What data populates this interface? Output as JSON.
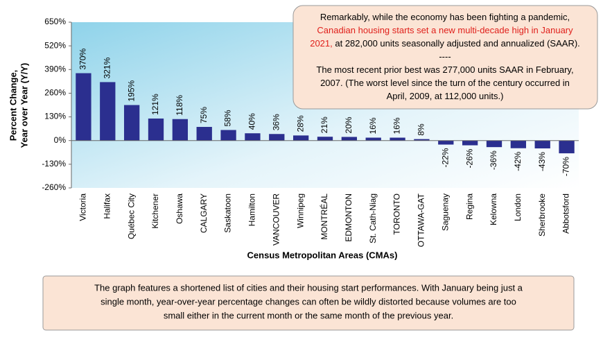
{
  "chart_data": {
    "type": "bar",
    "y_axis_title": [
      "Percent Change,",
      "Year over Year (Y/Y)"
    ],
    "x_axis_title": "Census Metropolitan Areas (CMAs)",
    "categories": [
      "Victoria",
      "Halifax",
      "Québec City",
      "Kitchener",
      "Oshawa",
      "CALGARY",
      "Saskatoon",
      "Hamilton",
      "VANCOUVER",
      "Winnipeg",
      "MONTRÉAL",
      "EDMONTON",
      "St. Cath-Niag",
      "TORONTO",
      "OTTAWA-GAT",
      "Saguenay",
      "Regina",
      "Kelowna",
      "London",
      "Sherbrooke",
      "Abbotsford"
    ],
    "values": [
      370,
      321,
      195,
      121,
      118,
      75,
      58,
      40,
      36,
      28,
      21,
      20,
      16,
      16,
      8,
      -22,
      -26,
      -36,
      -42,
      -43,
      -70
    ],
    "value_labels": [
      "370%",
      "321%",
      "195%",
      "121%",
      "118%",
      "75%",
      "58%",
      "40%",
      "36%",
      "28%",
      "21%",
      "20%",
      "16%",
      "16%",
      "8%",
      "-22%",
      "-26%",
      "-36%",
      "-42%",
      "-43%",
      "-70%"
    ],
    "color": "#2b2f8f",
    "ylim": [
      -260,
      650
    ],
    "yticks": [
      {
        "value": -260,
        "label": "-260%"
      },
      {
        "value": -130,
        "label": "-130%"
      },
      {
        "value": 0,
        "label": "0%"
      },
      {
        "value": 130,
        "label": "130%"
      },
      {
        "value": 260,
        "label": "260%"
      },
      {
        "value": 390,
        "label": "390%"
      },
      {
        "value": 520,
        "label": "520%"
      },
      {
        "value": 650,
        "label": "650%"
      }
    ],
    "annotation": [
      [
        {
          "text": "Remarkably, while the economy has been fighting a pandemic,",
          "color": "#000000"
        }
      ],
      [
        {
          "text": "Canadian housing starts set a new multi-decade high in January",
          "color": "#e0201b"
        }
      ],
      [
        {
          "text": "2021,",
          "color": "#e0201b"
        },
        {
          "text": " at 282,000 units seasonally adjusted and annualized (SAAR).",
          "color": "#000000"
        }
      ],
      [
        {
          "text": "----",
          "color": "#000000"
        }
      ],
      [
        {
          "text": "The most recent prior best was 277,000 units SAAR in February,",
          "color": "#000000"
        }
      ],
      [
        {
          "text": "2007. (The worst level since the turn of the century occurred in",
          "color": "#000000"
        }
      ],
      [
        {
          "text": "April, 2009, at 112,000 units.)",
          "color": "#000000"
        }
      ]
    ],
    "note": [
      "The graph features a shortened list of cities and their housing start performances. With January being just a",
      "single month, year-over-year percentage changes can often be wildly distorted because volumes are too",
      "small either in the current month or the same month of the previous year."
    ]
  }
}
